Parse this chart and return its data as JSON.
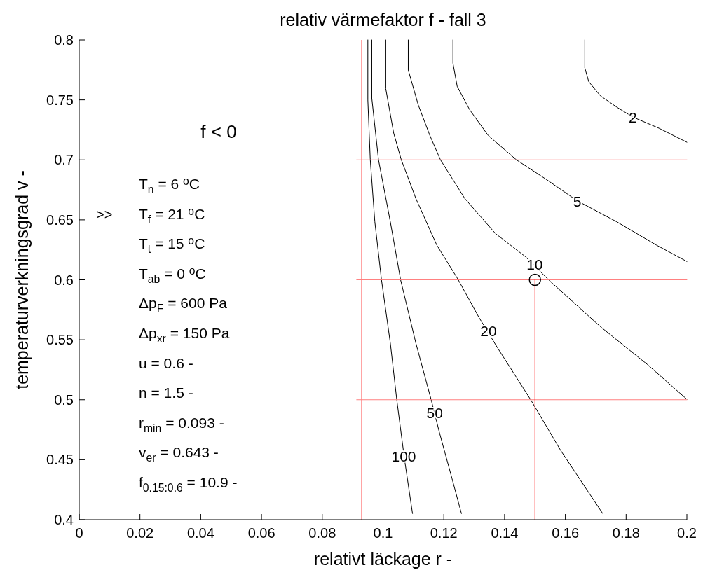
{
  "chart_data": {
    "type": "line",
    "title": "relativ värmefaktor f -    fall 3",
    "xlabel": "relativt läckage r -",
    "ylabel": "temperaturverkningsgrad v -",
    "xlim": [
      0,
      0.2
    ],
    "xticks": [
      0,
      0.02,
      0.04,
      0.06,
      0.08,
      0.1,
      0.12,
      0.14,
      0.16,
      0.18,
      0.2
    ],
    "ylim": [
      0.4,
      0.8
    ],
    "yticks": [
      0.4,
      0.45,
      0.5,
      0.55,
      0.6,
      0.65,
      0.7,
      0.75,
      0.8
    ],
    "series": [
      {
        "color": "#000000",
        "x": [
          0.1664,
          0.1664,
          0.1677,
          0.1715,
          0.1769,
          0.1822,
          0.1908,
          0.2
        ],
        "values": [
          0.8,
          0.7768,
          0.7652,
          0.7535,
          0.744,
          0.7357,
          0.7264,
          0.7147
        ]
      },
      {
        "color": "#000000",
        "x": [
          0.123,
          0.123,
          0.1244,
          0.1285,
          0.1346,
          0.1439,
          0.1539,
          0.1639,
          0.1769,
          0.19,
          0.2
        ],
        "values": [
          0.8,
          0.7807,
          0.7613,
          0.7418,
          0.7204,
          0.7,
          0.6834,
          0.6659,
          0.6484,
          0.6289,
          0.6153
        ]
      },
      {
        "color": "#000000",
        "x": [
          0.1083,
          0.1083,
          0.1116,
          0.1154,
          0.1189,
          0.1269,
          0.137,
          0.1469,
          0.1546,
          0.1716,
          0.1869,
          0.2
        ],
        "values": [
          0.8,
          0.7749,
          0.7457,
          0.7204,
          0.7,
          0.6678,
          0.6386,
          0.6192,
          0.5997,
          0.5608,
          0.5296,
          0.5004
        ]
      },
      {
        "color": "#000000",
        "x": [
          0.1009,
          0.1009,
          0.1035,
          0.106,
          0.1108,
          0.1177,
          0.1246,
          0.1316,
          0.1377,
          0.1485,
          0.1585,
          0.1723
        ],
        "values": [
          0.8,
          0.7593,
          0.7223,
          0.7001,
          0.6678,
          0.6289,
          0.6007,
          0.5685,
          0.5432,
          0.5004,
          0.4576,
          0.4051
        ]
      },
      {
        "color": "#000000",
        "x": [
          0.0963,
          0.0963,
          0.0985,
          0.1024,
          0.1058,
          0.1108,
          0.1158,
          0.1185,
          0.1227,
          0.1258
        ],
        "values": [
          0.8,
          0.7515,
          0.7001,
          0.6484,
          0.5997,
          0.5472,
          0.5004,
          0.4732,
          0.4343,
          0.4051
        ]
      },
      {
        "color": "#000000",
        "x": [
          0.095,
          0.095,
          0.0958,
          0.0973,
          0.0995,
          0.1024,
          0.1045,
          0.1071,
          0.1097
        ],
        "values": [
          0.8,
          0.7498,
          0.7001,
          0.6484,
          0.5997,
          0.5472,
          0.5004,
          0.4498,
          0.4051
        ]
      },
      {
        "color": "#ff8080",
        "x": [
          0.0913,
          0.2
        ],
        "values": [
          0.7,
          0.7
        ]
      },
      {
        "color": "#ff8080",
        "x": [
          0.0913,
          0.2
        ],
        "values": [
          0.6,
          0.6
        ]
      },
      {
        "color": "#ff8080",
        "x": [
          0.0913,
          0.2
        ],
        "values": [
          0.5,
          0.5
        ]
      },
      {
        "color": "#ff0000",
        "x": [
          0.15,
          0.15
        ],
        "values": [
          0.4,
          0.6
        ]
      },
      {
        "type": "scatter",
        "marker": "circle",
        "color": "#000000",
        "x": [
          0.15
        ],
        "values": [
          0.6
        ]
      }
    ],
    "ref_lines": [
      {
        "axis": "x",
        "value": 0.093,
        "color": "#ff0000"
      }
    ],
    "annotations": [
      {
        "text": "2",
        "x": 0.1822,
        "y": 0.7357
      },
      {
        "text": "5",
        "x": 0.1639,
        "y": 0.6659
      },
      {
        "text": "10",
        "x": 0.1499,
        "y": 0.6131
      },
      {
        "text": "20",
        "x": 0.1347,
        "y": 0.5577
      },
      {
        "text": "50",
        "x": 0.117,
        "y": 0.4893
      },
      {
        "text": "100",
        "x": 0.1068,
        "y": 0.4531
      },
      "f < 0",
      ">>",
      "T$_{n}$ = 6 $^{o}$C",
      "T$_{f}$ = 21 $^{o}$C",
      "T$_{t}$ = 15 $^{o}$C",
      "T$_{ab}$ = 0 $^{o}$C",
      "Δp$_{F}$ = 600 Pa",
      "Δp$_{xr}$ = 150 Pa",
      "u = 0.6 -",
      "n = 1.5 -",
      "r$_{min}$ = 0.093 -",
      "v$_{er}$ = 0.643 -",
      "f$_{0.15:0.6}$ = 10.9 -"
    ]
  }
}
